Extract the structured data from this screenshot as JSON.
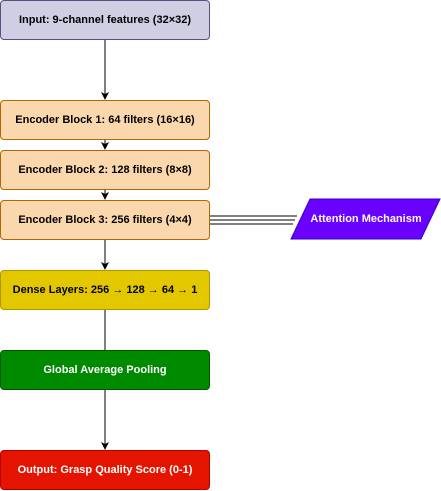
{
  "nodes": [
    {
      "id": "input",
      "label": "Input: 9-channel features (32×32)",
      "fill": "#d0cee2",
      "stroke": "#56517e",
      "text_color": "#000000"
    },
    {
      "id": "enc1",
      "label": "Encoder Block 1: 64 filters (16×16)",
      "fill": "#fad7ac",
      "stroke": "#b46504",
      "text_color": "#000000"
    },
    {
      "id": "enc2",
      "label": "Encoder Block 2: 128 filters (8×8)",
      "fill": "#fad7ac",
      "stroke": "#b46504",
      "text_color": "#000000"
    },
    {
      "id": "enc3",
      "label": "Encoder Block 3: 256 filters (4×4)",
      "fill": "#fad7ac",
      "stroke": "#b46504",
      "text_color": "#000000"
    },
    {
      "id": "dense",
      "label": "Dense Layers: 256 → 128 → 64 → 1",
      "fill": "#e3c800",
      "stroke": "#b09500",
      "text_color": "#000000"
    },
    {
      "id": "gap",
      "label": "Global Average Pooling",
      "fill": "#008a00",
      "stroke": "#005700",
      "text_color": "#ffffff"
    },
    {
      "id": "output",
      "label": "Output: Grasp Quality Score (0-1)",
      "fill": "#e51400",
      "stroke": "#b20000",
      "text_color": "#ffffff"
    }
  ],
  "attention": {
    "label": "Attention Mechanism",
    "fill": "#6a00ff",
    "stroke": "#3700cc",
    "text_color": "#ffffff"
  },
  "edges": [
    {
      "from": "input",
      "to": "enc1",
      "arrow": true
    },
    {
      "from": "enc1",
      "to": "enc2",
      "arrow": true
    },
    {
      "from": "enc2",
      "to": "enc3",
      "arrow": true
    },
    {
      "from": "enc3",
      "to": "dense",
      "arrow": true
    },
    {
      "from": "dense",
      "to": "gap",
      "arrow": false
    },
    {
      "from": "gap",
      "to": "output",
      "arrow": true
    },
    {
      "from": "enc3",
      "to": "attention",
      "style": "double-line",
      "arrow": false
    }
  ]
}
